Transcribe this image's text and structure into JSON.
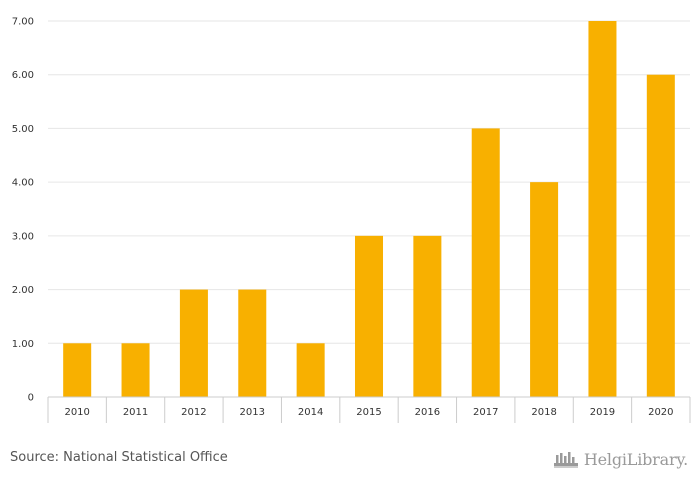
{
  "chart_data": {
    "type": "bar",
    "title": "",
    "xlabel": "",
    "ylabel": "",
    "categories": [
      "2010",
      "2011",
      "2012",
      "2013",
      "2014",
      "2015",
      "2016",
      "2017",
      "2018",
      "2019",
      "2020"
    ],
    "values": [
      1,
      1,
      2,
      2,
      1,
      3,
      3,
      5,
      4,
      7,
      6
    ],
    "ylim": [
      0,
      7
    ],
    "yticks": [
      0,
      1,
      2,
      3,
      4,
      5,
      6,
      7
    ],
    "ytick_labels": [
      "0",
      "1.00",
      "2.00",
      "3.00",
      "4.00",
      "5.00",
      "6.00",
      "7.00"
    ],
    "grid": true,
    "legend": "none",
    "colors": {
      "bar": "#F8B000",
      "grid": "#e6e6e6",
      "axis": "#cccccc"
    }
  },
  "footer": {
    "source": "Source: National Statistical Office",
    "brand": "HelgiLibrary.",
    "brand_icon": "helgi-library-logo-icon"
  }
}
